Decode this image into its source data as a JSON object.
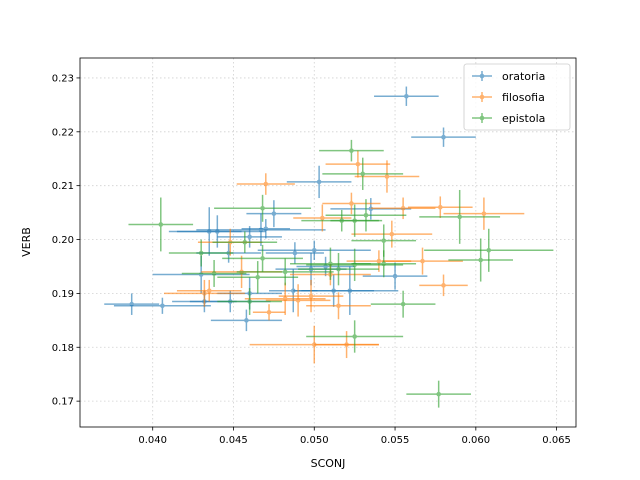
{
  "chart_data": {
    "type": "scatter",
    "xlabel": "SCONJ",
    "ylabel": "VERB",
    "xlim": [
      0.0355,
      0.0662
    ],
    "ylim": [
      0.1652,
      0.2337
    ],
    "xticks": [
      "0.040",
      "0.045",
      "0.050",
      "0.055",
      "0.060",
      "0.065"
    ],
    "yticks": [
      "0.17",
      "0.18",
      "0.19",
      "0.20",
      "0.21",
      "0.22",
      "0.23"
    ],
    "grid": true,
    "legend_position": "top-right",
    "series": [
      {
        "name": "oratoria",
        "color": "#1f77b4",
        "points": [
          {
            "x": 0.0557,
            "y": 0.2266,
            "xerr": 0.002,
            "yerr": 0.0018
          },
          {
            "x": 0.058,
            "y": 0.219,
            "xerr": 0.002,
            "yerr": 0.0018
          },
          {
            "x": 0.0503,
            "y": 0.2107,
            "xerr": 0.002,
            "yerr": 0.003
          },
          {
            "x": 0.0535,
            "y": 0.2057,
            "xerr": 0.0025,
            "yerr": 0.002
          },
          {
            "x": 0.0475,
            "y": 0.2048,
            "xerr": 0.0017,
            "yerr": 0.0025
          },
          {
            "x": 0.0467,
            "y": 0.2018,
            "xerr": 0.004,
            "yerr": 0.003
          },
          {
            "x": 0.0435,
            "y": 0.2015,
            "xerr": 0.002,
            "yerr": 0.0045
          },
          {
            "x": 0.044,
            "y": 0.2015,
            "xerr": 0.003,
            "yerr": 0.003
          },
          {
            "x": 0.046,
            "y": 0.2005,
            "xerr": 0.002,
            "yerr": 0.002
          },
          {
            "x": 0.047,
            "y": 0.202,
            "xerr": 0.0015,
            "yerr": 0.0018
          },
          {
            "x": 0.0447,
            "y": 0.1975,
            "xerr": 0.002,
            "yerr": 0.0018
          },
          {
            "x": 0.0488,
            "y": 0.1975,
            "xerr": 0.0018,
            "yerr": 0.002
          },
          {
            "x": 0.05,
            "y": 0.198,
            "xerr": 0.0035,
            "yerr": 0.0018
          },
          {
            "x": 0.0507,
            "y": 0.195,
            "xerr": 0.0018,
            "yerr": 0.0018
          },
          {
            "x": 0.0498,
            "y": 0.1945,
            "xerr": 0.0022,
            "yerr": 0.003
          },
          {
            "x": 0.055,
            "y": 0.1932,
            "xerr": 0.002,
            "yerr": 0.0025
          },
          {
            "x": 0.043,
            "y": 0.1935,
            "xerr": 0.003,
            "yerr": 0.0035
          },
          {
            "x": 0.0522,
            "y": 0.1905,
            "xerr": 0.003,
            "yerr": 0.0045
          },
          {
            "x": 0.0512,
            "y": 0.1905,
            "xerr": 0.0025,
            "yerr": 0.003
          },
          {
            "x": 0.046,
            "y": 0.19,
            "xerr": 0.002,
            "yerr": 0.003
          },
          {
            "x": 0.0487,
            "y": 0.1905,
            "xerr": 0.0015,
            "yerr": 0.004
          },
          {
            "x": 0.0432,
            "y": 0.1885,
            "xerr": 0.002,
            "yerr": 0.002
          },
          {
            "x": 0.0448,
            "y": 0.1885,
            "xerr": 0.0025,
            "yerr": 0.002
          },
          {
            "x": 0.0387,
            "y": 0.188,
            "xerr": 0.0017,
            "yerr": 0.002
          },
          {
            "x": 0.0406,
            "y": 0.1877,
            "xerr": 0.003,
            "yerr": 0.0015
          },
          {
            "x": 0.0458,
            "y": 0.185,
            "xerr": 0.0022,
            "yerr": 0.002
          }
        ]
      },
      {
        "name": "filosofia",
        "color": "#ff7f0e",
        "points": [
          {
            "x": 0.0527,
            "y": 0.214,
            "xerr": 0.002,
            "yerr": 0.0025
          },
          {
            "x": 0.0545,
            "y": 0.2117,
            "xerr": 0.002,
            "yerr": 0.003
          },
          {
            "x": 0.047,
            "y": 0.2103,
            "xerr": 0.0018,
            "yerr": 0.002
          },
          {
            "x": 0.0523,
            "y": 0.2067,
            "xerr": 0.0018,
            "yerr": 0.002
          },
          {
            "x": 0.0555,
            "y": 0.2058,
            "xerr": 0.002,
            "yerr": 0.002
          },
          {
            "x": 0.0578,
            "y": 0.206,
            "xerr": 0.002,
            "yerr": 0.002
          },
          {
            "x": 0.0605,
            "y": 0.2048,
            "xerr": 0.0025,
            "yerr": 0.003
          },
          {
            "x": 0.0505,
            "y": 0.204,
            "xerr": 0.0018,
            "yerr": 0.0025
          },
          {
            "x": 0.0548,
            "y": 0.201,
            "xerr": 0.0025,
            "yerr": 0.0025
          },
          {
            "x": 0.0448,
            "y": 0.1995,
            "xerr": 0.002,
            "yerr": 0.0025
          },
          {
            "x": 0.054,
            "y": 0.196,
            "xerr": 0.002,
            "yerr": 0.002
          },
          {
            "x": 0.0567,
            "y": 0.196,
            "xerr": 0.0025,
            "yerr": 0.0025
          },
          {
            "x": 0.0455,
            "y": 0.194,
            "xerr": 0.0025,
            "yerr": 0.003
          },
          {
            "x": 0.051,
            "y": 0.1935,
            "xerr": 0.0025,
            "yerr": 0.002
          },
          {
            "x": 0.058,
            "y": 0.1915,
            "xerr": 0.0015,
            "yerr": 0.002
          },
          {
            "x": 0.0435,
            "y": 0.1905,
            "xerr": 0.002,
            "yerr": 0.002
          },
          {
            "x": 0.0432,
            "y": 0.19,
            "xerr": 0.0025,
            "yerr": 0.0025
          },
          {
            "x": 0.0498,
            "y": 0.1895,
            "xerr": 0.002,
            "yerr": 0.003
          },
          {
            "x": 0.049,
            "y": 0.1887,
            "xerr": 0.002,
            "yerr": 0.003
          },
          {
            "x": 0.0482,
            "y": 0.189,
            "xerr": 0.0025,
            "yerr": 0.003
          },
          {
            "x": 0.0515,
            "y": 0.1877,
            "xerr": 0.002,
            "yerr": 0.0025
          },
          {
            "x": 0.0472,
            "y": 0.1865,
            "xerr": 0.001,
            "yerr": 0.0015
          },
          {
            "x": 0.05,
            "y": 0.1805,
            "xerr": 0.004,
            "yerr": 0.0035
          },
          {
            "x": 0.052,
            "y": 0.1805,
            "xerr": 0.002,
            "yerr": 0.0025
          }
        ]
      },
      {
        "name": "epistola",
        "color": "#2ca02c",
        "points": [
          {
            "x": 0.0523,
            "y": 0.2165,
            "xerr": 0.002,
            "yerr": 0.002
          },
          {
            "x": 0.053,
            "y": 0.2122,
            "xerr": 0.0025,
            "yerr": 0.003
          },
          {
            "x": 0.0468,
            "y": 0.2058,
            "xerr": 0.003,
            "yerr": 0.0025
          },
          {
            "x": 0.0532,
            "y": 0.2045,
            "xerr": 0.0025,
            "yerr": 0.003
          },
          {
            "x": 0.0517,
            "y": 0.2035,
            "xerr": 0.0025,
            "yerr": 0.002
          },
          {
            "x": 0.0525,
            "y": 0.2035,
            "xerr": 0.0015,
            "yerr": 0.003
          },
          {
            "x": 0.059,
            "y": 0.2042,
            "xerr": 0.0025,
            "yerr": 0.005
          },
          {
            "x": 0.0405,
            "y": 0.2028,
            "xerr": 0.002,
            "yerr": 0.005
          },
          {
            "x": 0.0457,
            "y": 0.1995,
            "xerr": 0.002,
            "yerr": 0.002
          },
          {
            "x": 0.0543,
            "y": 0.1998,
            "xerr": 0.002,
            "yerr": 0.003
          },
          {
            "x": 0.0608,
            "y": 0.198,
            "xerr": 0.004,
            "yerr": 0.004
          },
          {
            "x": 0.043,
            "y": 0.1975,
            "xerr": 0.002,
            "yerr": 0.0025
          },
          {
            "x": 0.0468,
            "y": 0.1965,
            "xerr": 0.0025,
            "yerr": 0.0025
          },
          {
            "x": 0.0603,
            "y": 0.1962,
            "xerr": 0.002,
            "yerr": 0.004
          },
          {
            "x": 0.051,
            "y": 0.1955,
            "xerr": 0.0025,
            "yerr": 0.003
          },
          {
            "x": 0.0525,
            "y": 0.1953,
            "xerr": 0.003,
            "yerr": 0.003
          },
          {
            "x": 0.0543,
            "y": 0.1955,
            "xerr": 0.002,
            "yerr": 0.0025
          },
          {
            "x": 0.0515,
            "y": 0.1945,
            "xerr": 0.0025,
            "yerr": 0.003
          },
          {
            "x": 0.0482,
            "y": 0.194,
            "xerr": 0.003,
            "yerr": 0.0025
          },
          {
            "x": 0.0438,
            "y": 0.1937,
            "xerr": 0.002,
            "yerr": 0.0025
          },
          {
            "x": 0.0465,
            "y": 0.193,
            "xerr": 0.0025,
            "yerr": 0.003
          },
          {
            "x": 0.046,
            "y": 0.1885,
            "xerr": 0.002,
            "yerr": 0.0025
          },
          {
            "x": 0.0555,
            "y": 0.188,
            "xerr": 0.002,
            "yerr": 0.0025
          },
          {
            "x": 0.0525,
            "y": 0.182,
            "xerr": 0.003,
            "yerr": 0.003
          },
          {
            "x": 0.0577,
            "y": 0.1713,
            "xerr": 0.002,
            "yerr": 0.0025
          }
        ]
      }
    ]
  }
}
